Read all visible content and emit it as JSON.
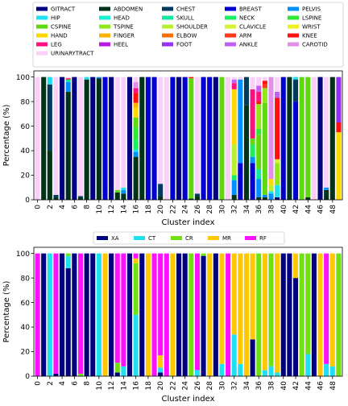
{
  "colors": {
    "GITRACT": "#000080",
    "ABDOMEN": "#00331a",
    "CHEST": "#003a5c",
    "BREAST": "#0000d0",
    "PELVIS": "#0090ff",
    "HIP": "#1ee0f0",
    "HEAD": "#14f0d0",
    "SKULL": "#10e8a0",
    "NECK": "#18f060",
    "LSPINE": "#30e838",
    "CSPINE": "#60d810",
    "TSPINE": "#90e818",
    "SHOULDER": "#b8f030",
    "CLAVICLE": "#d8f038",
    "WRIST": "#f0f020",
    "HAND": "#ffd800",
    "FINGER": "#ffb000",
    "ELBOW": "#ff7000",
    "ARM": "#ff3818",
    "KNEE": "#ff1010",
    "LEG": "#ff1080",
    "HEEL": "#b818e0",
    "FOOT": "#9830f0",
    "ANKLE": "#c060f0",
    "CAROTID": "#e090e8",
    "URINARYTRACT": "#f8d0f8",
    "XA": "#000080",
    "CT": "#1ee0f0",
    "CR": "#70e010",
    "MR": "#ffc800",
    "RF": "#ff10ff"
  },
  "chart_data": [
    {
      "type": "bar",
      "stacked": true,
      "xlabel": "Cluster index",
      "ylabel": "Percentage (%)",
      "ylim": [
        0,
        105
      ],
      "xticks": [
        "0",
        "2",
        "4",
        "6",
        "8",
        "10",
        "12",
        "14",
        "16",
        "18",
        "20",
        "22",
        "24",
        "26",
        "28",
        "30",
        "32",
        "34",
        "36",
        "38",
        "40",
        "42",
        "44",
        "46",
        "48"
      ],
      "yticks": [
        "0",
        "20",
        "40",
        "60",
        "80",
        "100"
      ],
      "legend": [
        "GITRACT",
        "ABDOMEN",
        "CHEST",
        "BREAST",
        "PELVIS",
        "HIP",
        "HEAD",
        "SKULL",
        "NECK",
        "LSPINE",
        "CSPINE",
        "TSPINE",
        "SHOULDER",
        "CLAVICLE",
        "WRIST",
        "HAND",
        "FINGER",
        "ELBOW",
        "ARM",
        "KNEE",
        "LEG",
        "HEEL",
        "FOOT",
        "ANKLE",
        "CAROTID",
        "URINARYTRACT"
      ],
      "clusters": [
        [
          [
            "URINARYTRACT",
            100
          ]
        ],
        [
          [
            "ABDOMEN",
            100
          ]
        ],
        [
          [
            "ABDOMEN",
            40
          ],
          [
            "CHEST",
            54
          ],
          [
            "HIP",
            6
          ]
        ],
        [
          [
            "ABDOMEN",
            2
          ],
          [
            "CHEST",
            2
          ],
          [
            "URINARYTRACT",
            96
          ]
        ],
        [
          [
            "GITRACT",
            100
          ]
        ],
        [
          [
            "ABDOMEN",
            88
          ],
          [
            "PELVIS",
            8
          ],
          [
            "SKULL",
            2
          ],
          [
            "KNEE",
            1
          ],
          [
            "URINARYTRACT",
            1
          ]
        ],
        [
          [
            "GITRACT",
            100
          ]
        ],
        [
          [
            "ABDOMEN",
            2
          ],
          [
            "CHEST",
            1
          ],
          [
            "URINARYTRACT",
            97
          ]
        ],
        [
          [
            "ABDOMEN",
            98
          ],
          [
            "HIP",
            2
          ]
        ],
        [
          [
            "GITRACT",
            100
          ]
        ],
        [
          [
            "ABDOMEN",
            99
          ],
          [
            "PELVIS",
            1
          ]
        ],
        [
          [
            "BREAST",
            100
          ]
        ],
        [
          [
            "GITRACT",
            100
          ]
        ],
        [
          [
            "ABDOMEN",
            6
          ],
          [
            "CSPINE",
            2
          ],
          [
            "URINARYTRACT",
            92
          ]
        ],
        [
          [
            "ABDOMEN",
            5
          ],
          [
            "PELVIS",
            3
          ],
          [
            "HIP",
            2
          ],
          [
            "URINARYTRACT",
            90
          ]
        ],
        [
          [
            "GITRACT",
            100
          ]
        ],
        [
          [
            "ABDOMEN",
            35
          ],
          [
            "PELVIS",
            4
          ],
          [
            "HIP",
            2
          ],
          [
            "NECK",
            8
          ],
          [
            "LSPINE",
            10
          ],
          [
            "CSPINE",
            8
          ],
          [
            "HAND",
            8
          ],
          [
            "FINGER",
            4
          ],
          [
            "KNEE",
            8
          ],
          [
            "LEG",
            4
          ],
          [
            "CAROTID",
            5
          ],
          [
            "URINARYTRACT",
            4
          ]
        ],
        [
          [
            "ABDOMEN",
            100
          ]
        ],
        [
          [
            "BREAST",
            100
          ]
        ],
        [
          [
            "BREAST",
            100
          ]
        ],
        [
          [
            "ABDOMEN",
            3
          ],
          [
            "CHEST",
            10
          ],
          [
            "URINARYTRACT",
            87
          ]
        ],
        [
          [
            "URINARYTRACT",
            100
          ]
        ],
        [
          [
            "BREAST",
            100
          ]
        ],
        [
          [
            "GITRACT",
            100
          ]
        ],
        [
          [
            "BREAST",
            100
          ]
        ],
        [
          [
            "ABDOMEN",
            1
          ],
          [
            "CSPINE",
            98
          ],
          [
            "KNEE",
            1
          ]
        ],
        [
          [
            "ABDOMEN",
            3
          ],
          [
            "CHEST",
            2
          ],
          [
            "URINARYTRACT",
            95
          ]
        ],
        [
          [
            "BREAST",
            100
          ]
        ],
        [
          [
            "BREAST",
            100
          ]
        ],
        [
          [
            "GITRACT",
            100
          ]
        ],
        [
          [
            "CSPINE",
            100
          ]
        ],
        [
          [
            "URINARYTRACT",
            100
          ]
        ],
        [
          [
            "ABDOMEN",
            4
          ],
          [
            "PELVIS",
            12
          ],
          [
            "NECK",
            4
          ],
          [
            "SHOULDER",
            25
          ],
          [
            "HAND",
            45
          ],
          [
            "LEG",
            5
          ],
          [
            "ANKLE",
            3
          ],
          [
            "URINARYTRACT",
            2
          ]
        ],
        [
          [
            "BREAST",
            30
          ],
          [
            "PELVIS",
            68
          ],
          [
            "URINARYTRACT",
            2
          ]
        ],
        [
          [
            "ABDOMEN",
            77
          ],
          [
            "CHEST",
            23
          ]
        ],
        [
          [
            "BREAST",
            30
          ],
          [
            "PELVIS",
            5
          ],
          [
            "NECK",
            10
          ],
          [
            "CSPINE",
            5
          ],
          [
            "LEG",
            40
          ],
          [
            "URINARYTRACT",
            10
          ]
        ],
        [
          [
            "ABDOMEN",
            2
          ],
          [
            "PELVIS",
            15
          ],
          [
            "SKULL",
            8
          ],
          [
            "CSPINE",
            28
          ],
          [
            "LSPINE",
            5
          ],
          [
            "TSPINE",
            20
          ],
          [
            "KNEE",
            2
          ],
          [
            "LEG",
            8
          ],
          [
            "ANKLE",
            5
          ],
          [
            "URINARYTRACT",
            7
          ]
        ],
        [
          [
            "ABDOMEN",
            2
          ],
          [
            "PELVIS",
            2
          ],
          [
            "CSPINE",
            75
          ],
          [
            "TSPINE",
            12
          ],
          [
            "ARM",
            3
          ],
          [
            "KNEE",
            3
          ],
          [
            "URINARYTRACT",
            3
          ]
        ],
        [
          [
            "PELVIS",
            5
          ],
          [
            "HIP",
            2
          ],
          [
            "SHOULDER",
            5
          ],
          [
            "HAND",
            5
          ],
          [
            "CAROTID",
            83
          ]
        ],
        [
          [
            "GITRACT",
            2
          ],
          [
            "HIP",
            10
          ],
          [
            "TSPINE",
            18
          ],
          [
            "CLAVICLE",
            3
          ],
          [
            "KNEE",
            50
          ],
          [
            "ANKLE",
            5
          ],
          [
            "URINARYTRACT",
            12
          ]
        ],
        [
          [
            "BREAST",
            100
          ]
        ],
        [
          [
            "ABDOMEN",
            100
          ]
        ],
        [
          [
            "BREAST",
            80
          ],
          [
            "CHEST",
            18
          ],
          [
            "HIP",
            2
          ]
        ],
        [
          [
            "CSPINE",
            100
          ]
        ],
        [
          [
            "ABDOMEN",
            2
          ],
          [
            "CSPINE",
            98
          ]
        ],
        [
          [
            "URINARYTRACT",
            100
          ]
        ],
        [
          [
            "GITRACT",
            100
          ]
        ],
        [
          [
            "ABDOMEN",
            8
          ],
          [
            "PELVIS",
            2
          ],
          [
            "URINARYTRACT",
            90
          ]
        ],
        [
          [
            "ABDOMEN",
            100
          ]
        ],
        [
          [
            "HAND",
            55
          ],
          [
            "KNEE",
            8
          ],
          [
            "FOOT",
            37
          ]
        ]
      ]
    },
    {
      "type": "bar",
      "stacked": true,
      "xlabel": "Cluster index",
      "ylabel": "Percentage (%)",
      "ylim": [
        0,
        105
      ],
      "xticks": [
        "0",
        "2",
        "4",
        "6",
        "8",
        "10",
        "12",
        "14",
        "16",
        "18",
        "20",
        "22",
        "24",
        "26",
        "28",
        "30",
        "32",
        "34",
        "36",
        "38",
        "40",
        "42",
        "44",
        "46",
        "48"
      ],
      "yticks": [
        "0",
        "20",
        "40",
        "60",
        "80",
        "100"
      ],
      "legend": [
        "XA",
        "CT",
        "CR",
        "MR",
        "RF"
      ],
      "clusters": [
        [
          [
            "RF",
            100
          ]
        ],
        [
          [
            "XA",
            100
          ]
        ],
        [
          [
            "CT",
            100
          ]
        ],
        [
          [
            "XA",
            2
          ],
          [
            "RF",
            98
          ]
        ],
        [
          [
            "XA",
            100
          ]
        ],
        [
          [
            "XA",
            88
          ],
          [
            "CT",
            10
          ],
          [
            "CR",
            2
          ]
        ],
        [
          [
            "XA",
            100
          ]
        ],
        [
          [
            "CR",
            2
          ],
          [
            "RF",
            98
          ]
        ],
        [
          [
            "XA",
            100
          ]
        ],
        [
          [
            "XA",
            100
          ]
        ],
        [
          [
            "CT",
            100
          ]
        ],
        [
          [
            "MR",
            100
          ]
        ],
        [
          [
            "XA",
            100
          ]
        ],
        [
          [
            "XA",
            3
          ],
          [
            "CR",
            8
          ],
          [
            "RF",
            89
          ]
        ],
        [
          [
            "CT",
            8
          ],
          [
            "RF",
            92
          ]
        ],
        [
          [
            "XA",
            100
          ]
        ],
        [
          [
            "CT",
            50
          ],
          [
            "CR",
            42
          ],
          [
            "MR",
            4
          ],
          [
            "RF",
            4
          ]
        ],
        [
          [
            "XA",
            100
          ]
        ],
        [
          [
            "MR",
            100
          ]
        ],
        [
          [
            "RF",
            100
          ]
        ],
        [
          [
            "XA",
            3
          ],
          [
            "CT",
            4
          ],
          [
            "MR",
            10
          ],
          [
            "RF",
            83
          ]
        ],
        [
          [
            "RF",
            100
          ]
        ],
        [
          [
            "MR",
            100
          ]
        ],
        [
          [
            "XA",
            100
          ]
        ],
        [
          [
            "XA",
            100
          ]
        ],
        [
          [
            "CR",
            100
          ]
        ],
        [
          [
            "CT",
            5
          ],
          [
            "RF",
            95
          ]
        ],
        [
          [
            "XA",
            98
          ],
          [
            "CR",
            2
          ]
        ],
        [
          [
            "MR",
            100
          ]
        ],
        [
          [
            "XA",
            100
          ]
        ],
        [
          [
            "CT",
            10
          ],
          [
            "MR",
            90
          ]
        ],
        [
          [
            "RF",
            100
          ]
        ],
        [
          [
            "CT",
            34
          ],
          [
            "MR",
            66
          ]
        ],
        [
          [
            "CT",
            10
          ],
          [
            "MR",
            90
          ]
        ],
        [
          [
            "MR",
            100
          ]
        ],
        [
          [
            "XA",
            30
          ],
          [
            "MR",
            70
          ]
        ],
        [
          [
            "CR",
            100
          ]
        ],
        [
          [
            "CT",
            5
          ],
          [
            "MR",
            95
          ]
        ],
        [
          [
            "CT",
            8
          ],
          [
            "CR",
            92
          ]
        ],
        [
          [
            "CT",
            3
          ],
          [
            "MR",
            97
          ]
        ],
        [
          [
            "XA",
            100
          ]
        ],
        [
          [
            "XA",
            100
          ]
        ],
        [
          [
            "XA",
            80
          ],
          [
            "MR",
            20
          ]
        ],
        [
          [
            "CR",
            100
          ]
        ],
        [
          [
            "CT",
            18
          ],
          [
            "CR",
            82
          ]
        ],
        [
          [
            "XA",
            100
          ]
        ],
        [
          [
            "MR",
            100
          ]
        ],
        [
          [
            "CT",
            10
          ],
          [
            "RF",
            90
          ]
        ],
        [
          [
            "CT",
            8
          ],
          [
            "MR",
            92
          ]
        ],
        [
          [
            "CR",
            100
          ]
        ]
      ]
    }
  ]
}
